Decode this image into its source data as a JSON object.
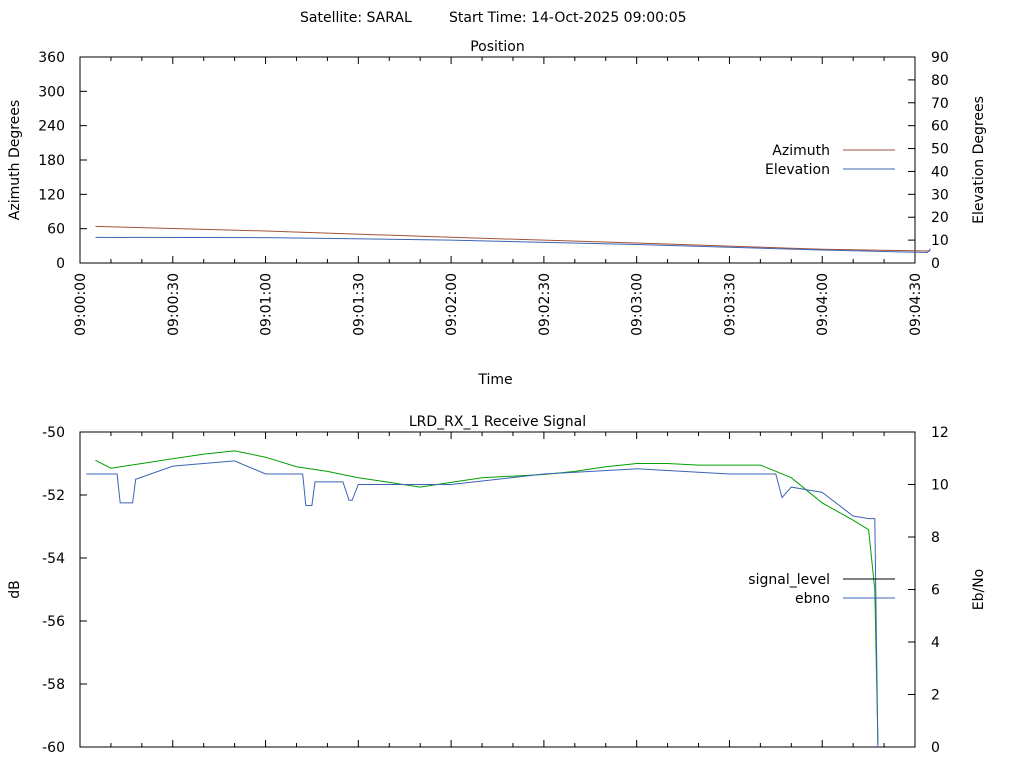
{
  "header": {
    "satellite": "Satellite: SARAL",
    "start_time": "Start Time: 14-Oct-2025 09:00:05"
  },
  "colors": {
    "azimuth": "#a0523c",
    "elevation": "#3c64b4",
    "signal_level_line": "#00a000",
    "signal_level_key": "#000000",
    "ebno": "#3c64b4"
  },
  "chart_data": [
    {
      "type": "line",
      "title": "Position",
      "xlabel": "Time",
      "ylabel": "Azimuth Degrees",
      "y2label": "Elevation Degrees",
      "xlim": [
        "09:00:00",
        "09:04:30"
      ],
      "ylim": [
        0,
        360
      ],
      "y2lim": [
        0,
        90
      ],
      "xticks": [
        "09:00:00",
        "09:00:30",
        "09:01:00",
        "09:01:30",
        "09:02:00",
        "09:02:30",
        "09:03:00",
        "09:03:30",
        "09:04:00",
        "09:04:30"
      ],
      "yticks": [
        "0",
        "60",
        "120",
        "180",
        "240",
        "300",
        "360"
      ],
      "y2ticks": [
        "0",
        "10",
        "20",
        "30",
        "40",
        "50",
        "60",
        "70",
        "80",
        "90"
      ],
      "legend_position": "right",
      "grid": false,
      "series": [
        {
          "name": "Azimuth",
          "axis": "y",
          "x": [
            "09:00:05",
            "09:01:00",
            "09:02:00",
            "09:03:00",
            "09:04:00",
            "09:04:35"
          ],
          "values": [
            64,
            56,
            45,
            35,
            24,
            21
          ]
        },
        {
          "name": "Elevation",
          "axis": "y2",
          "x": [
            "09:00:05",
            "09:01:00",
            "09:02:00",
            "09:03:00",
            "09:04:00",
            "09:04:34",
            "09:04:35"
          ],
          "values": [
            11.2,
            11.1,
            10.0,
            8.1,
            5.7,
            4.6,
            6.2
          ]
        }
      ]
    },
    {
      "type": "line",
      "title": "LRD_RX_1 Receive Signal",
      "xlabel": "",
      "ylabel": "dB",
      "y2label": "Eb/No",
      "xlim": [
        "09:00:00",
        "09:04:30"
      ],
      "ylim": [
        -60,
        -50
      ],
      "y2lim": [
        0,
        12
      ],
      "yticks": [
        "-60",
        "-58",
        "-56",
        "-54",
        "-52",
        "-50"
      ],
      "y2ticks": [
        "0",
        "2",
        "4",
        "6",
        "8",
        "10",
        "12"
      ],
      "legend_position": "right",
      "grid": false,
      "series": [
        {
          "name": "signal_level",
          "axis": "y",
          "x": [
            "09:00:05",
            "09:00:10",
            "09:00:20",
            "09:00:30",
            "09:00:40",
            "09:00:50",
            "09:01:00",
            "09:01:10",
            "09:01:20",
            "09:01:30",
            "09:01:40",
            "09:01:50",
            "09:02:00",
            "09:02:10",
            "09:02:20",
            "09:02:30",
            "09:02:40",
            "09:02:50",
            "09:03:00",
            "09:03:10",
            "09:03:20",
            "09:03:30",
            "09:03:40",
            "09:03:50",
            "09:04:00",
            "09:04:10",
            "09:04:15",
            "09:04:17",
            "09:04:18"
          ],
          "values": [
            -50.9,
            -51.15,
            -51.0,
            -50.85,
            -50.7,
            -50.6,
            -50.8,
            -51.1,
            -51.25,
            -51.45,
            -51.6,
            -51.75,
            -51.6,
            -51.45,
            -51.4,
            -51.35,
            -51.25,
            -51.1,
            -51.0,
            -51.0,
            -51.05,
            -51.05,
            -51.05,
            -51.45,
            -52.25,
            -52.8,
            -53.1,
            -55.0,
            -59.9
          ]
        },
        {
          "name": "ebno",
          "axis": "y2",
          "x": [
            "09:00:02",
            "09:00:12",
            "09:00:13",
            "09:00:17",
            "09:00:18",
            "09:00:30",
            "09:00:50",
            "09:01:00",
            "09:01:10",
            "09:01:12",
            "09:01:13",
            "09:01:15",
            "09:01:16",
            "09:01:25",
            "09:01:27",
            "09:01:28",
            "09:01:30",
            "09:01:31",
            "09:02:00",
            "09:02:30",
            "09:03:00",
            "09:03:30",
            "09:03:45",
            "09:03:47",
            "09:03:50",
            "09:04:00",
            "09:04:10",
            "09:04:15",
            "09:04:17",
            "09:04:18"
          ],
          "values": [
            10.4,
            10.4,
            9.3,
            9.3,
            10.2,
            10.7,
            10.9,
            10.4,
            10.4,
            10.4,
            9.2,
            9.2,
            10.1,
            10.1,
            9.4,
            9.4,
            10.0,
            10.0,
            10.0,
            10.4,
            10.6,
            10.4,
            10.4,
            9.5,
            9.9,
            9.7,
            8.8,
            8.7,
            8.7,
            0
          ]
        }
      ]
    }
  ]
}
